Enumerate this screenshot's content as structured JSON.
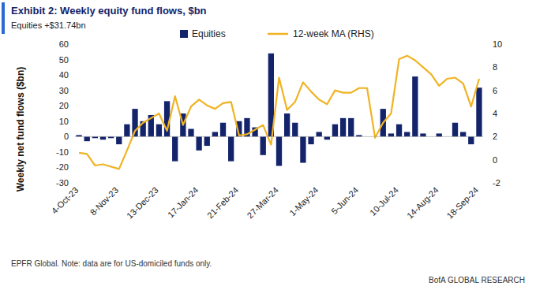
{
  "chart_data": {
    "type": "bar",
    "title": "Exhibit 2: Weekly equity fund flows, $bn",
    "subtitle": "Equities +$31.74bn",
    "y_label": "Weekly net fund flows ($bn)",
    "note": "EPFR Global. Note: data are for US-domiciled funds only.",
    "source": "BofA GLOBAL RESEARCH",
    "categories": [
      "4-Oct-23",
      null,
      null,
      null,
      null,
      "8-Nov-23",
      null,
      null,
      null,
      null,
      "13-Dec-23",
      null,
      null,
      null,
      null,
      "17-Jan-24",
      null,
      null,
      null,
      null,
      "21-Feb-24",
      null,
      null,
      null,
      null,
      "27-Mar-24",
      null,
      null,
      null,
      null,
      "1-May-24",
      null,
      null,
      null,
      null,
      "5-Jun-24",
      null,
      null,
      null,
      null,
      "10-Jul-24",
      null,
      null,
      null,
      null,
      "14-Aug-24",
      null,
      null,
      null,
      null,
      "18-Sep-24"
    ],
    "series": [
      {
        "name": "Equities",
        "type": "bar",
        "color": "#14246b",
        "values": [
          1,
          -3,
          -1,
          -2,
          -1,
          -5,
          8,
          18,
          10,
          14,
          8,
          23,
          -16,
          15,
          5,
          -9,
          -6,
          3,
          9,
          -16,
          10,
          12,
          6,
          -12,
          54,
          -19,
          15,
          9,
          -17,
          -5,
          3,
          -2,
          8,
          12,
          12,
          1,
          0,
          0,
          18,
          2,
          8,
          3,
          39,
          2,
          0,
          2,
          0,
          9,
          3,
          -5,
          31.74
        ]
      },
      {
        "name": "12-week MA (RHS)",
        "type": "line",
        "axis": "y2",
        "color": "#f0b323",
        "values": [
          0.6,
          0.5,
          -0.5,
          -0.4,
          -0.6,
          -0.8,
          0.8,
          2.5,
          3.2,
          3.6,
          4.0,
          2.5,
          5.5,
          3.0,
          4.6,
          5.2,
          4.7,
          4.4,
          4.9,
          5.0,
          2.1,
          2.2,
          2.6,
          3.0,
          1.3,
          7.1,
          4.3,
          5.0,
          6.7,
          5.9,
          5.2,
          4.8,
          6.0,
          5.8,
          5.8,
          6.2,
          6.2,
          1.9,
          3.2,
          4.0,
          8.7,
          9.0,
          8.6,
          8.0,
          7.4,
          6.4,
          7.0,
          7.1,
          6.6,
          4.6,
          7.0
        ]
      }
    ],
    "ylim": [
      -30,
      60
    ],
    "yticks": [
      -30,
      -20,
      -10,
      0,
      10,
      20,
      30,
      40,
      50,
      60
    ],
    "y2lim": [
      -2,
      10
    ],
    "y2ticks": [
      -2,
      0,
      2,
      4,
      6,
      8,
      10
    ],
    "grid": false,
    "legend": "top"
  }
}
